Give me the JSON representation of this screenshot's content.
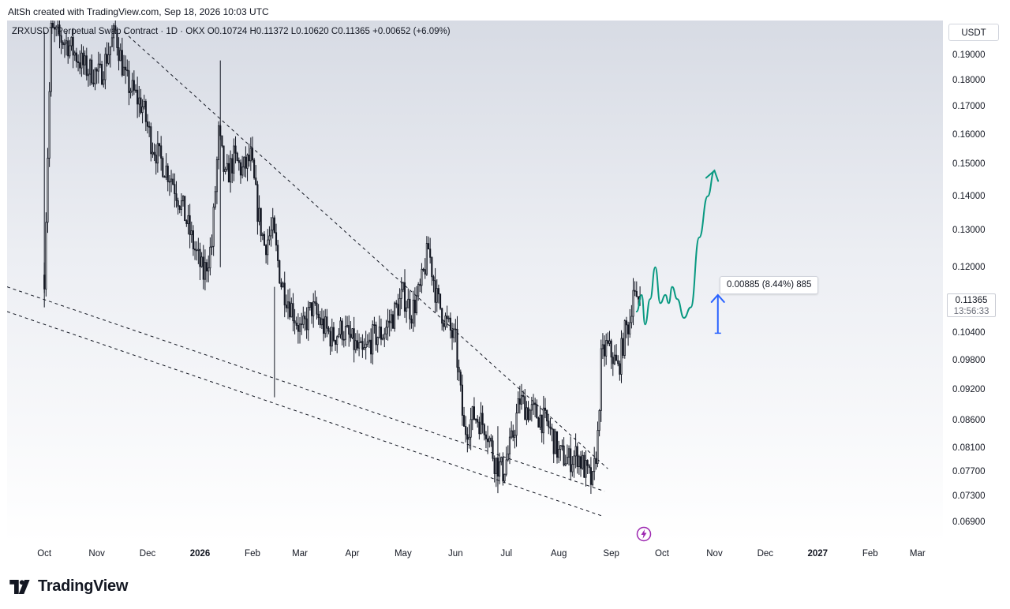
{
  "header": {
    "credit": "AltSh created with TradingView.com, Sep 18, 2026 10:03 UTC"
  },
  "legend": {
    "symbol": "ZRXUSDT Perpetual Swap Contract · 1D · OKX",
    "open": "O0.10724",
    "high": "H0.11372",
    "low": "L0.10620",
    "close": "C0.11365",
    "change": "+0.00652 (+6.09%)"
  },
  "currency_label": "USDT",
  "last_price": {
    "value": "0.11365",
    "countdown": "13:56:33"
  },
  "measure_label": "0.00885 (8.44%) 885",
  "logo_text": "TradingView",
  "colors": {
    "up": "#089981",
    "down": "#131722",
    "projection": "#089981",
    "arrow": "#2962ff",
    "flash": "#9c27b0"
  },
  "icons": [
    "tradingview-logo-icon",
    "flash-icon"
  ],
  "chart_data": {
    "type": "line",
    "title": "ZRXUSDT Perpetual Swap Contract · 1D · OKX",
    "xlabel": "",
    "ylabel": "",
    "y_scale": "log",
    "ylim": [
      0.066,
      0.205
    ],
    "y_ticks": [
      "0.19000",
      "0.18000",
      "0.17000",
      "0.16000",
      "0.15000",
      "0.14000",
      "0.13000",
      "0.12000",
      "0.10400",
      "0.09800",
      "0.09200",
      "0.08600",
      "0.08100",
      "0.07700",
      "0.07300",
      "0.06900"
    ],
    "x_ticks": [
      {
        "label": "Oct",
        "bold": false
      },
      {
        "label": "Nov",
        "bold": false
      },
      {
        "label": "Dec",
        "bold": false
      },
      {
        "label": "2026",
        "bold": true
      },
      {
        "label": "Feb",
        "bold": false
      },
      {
        "label": "Mar",
        "bold": false
      },
      {
        "label": "Apr",
        "bold": false
      },
      {
        "label": "May",
        "bold": false
      },
      {
        "label": "Jun",
        "bold": false
      },
      {
        "label": "Jul",
        "bold": false
      },
      {
        "label": "Aug",
        "bold": false
      },
      {
        "label": "Sep",
        "bold": false
      },
      {
        "label": "Oct",
        "bold": false
      },
      {
        "label": "Nov",
        "bold": false
      },
      {
        "label": "Dec",
        "bold": false
      },
      {
        "label": "2027",
        "bold": true
      },
      {
        "label": "Feb",
        "bold": false
      },
      {
        "label": "Mar",
        "bold": false
      }
    ],
    "x_range": [
      "2025-09-09",
      "2027-03-16"
    ],
    "series": [
      {
        "type": "price",
        "points": [
          [
            "2025-10-01",
            0.118
          ],
          [
            "2025-10-05",
            0.2
          ],
          [
            "2025-10-15",
            0.195
          ],
          [
            "2025-10-25",
            0.185
          ],
          [
            "2025-11-03",
            0.182
          ],
          [
            "2025-11-12",
            0.2
          ],
          [
            "2025-11-18",
            0.18
          ],
          [
            "2025-11-28",
            0.17
          ],
          [
            "2025-12-03",
            0.158
          ],
          [
            "2025-12-08",
            0.152
          ],
          [
            "2025-12-15",
            0.146
          ],
          [
            "2025-12-22",
            0.136
          ],
          [
            "2025-12-28",
            0.126
          ],
          [
            "2026-01-03",
            0.118
          ],
          [
            "2026-01-08",
            0.126
          ],
          [
            "2026-01-12",
            0.16
          ],
          [
            "2026-01-16",
            0.145
          ],
          [
            "2026-01-21",
            0.152
          ],
          [
            "2026-01-26",
            0.148
          ],
          [
            "2026-01-31",
            0.152
          ],
          [
            "2026-02-04",
            0.136
          ],
          [
            "2026-02-08",
            0.126
          ],
          [
            "2026-02-13",
            0.13
          ],
          [
            "2026-02-18",
            0.116
          ],
          [
            "2026-02-24",
            0.11
          ],
          [
            "2026-03-02",
            0.104
          ],
          [
            "2026-03-08",
            0.11
          ],
          [
            "2026-03-14",
            0.106
          ],
          [
            "2026-03-20",
            0.103
          ],
          [
            "2026-03-26",
            0.105
          ],
          [
            "2026-04-01",
            0.102
          ],
          [
            "2026-04-07",
            0.099
          ],
          [
            "2026-04-13",
            0.103
          ],
          [
            "2026-04-19",
            0.104
          ],
          [
            "2026-04-25",
            0.108
          ],
          [
            "2026-05-01",
            0.113
          ],
          [
            "2026-05-06",
            0.109
          ],
          [
            "2026-05-11",
            0.114
          ],
          [
            "2026-05-16",
            0.125
          ],
          [
            "2026-05-21",
            0.112
          ],
          [
            "2026-05-27",
            0.106
          ],
          [
            "2026-06-01",
            0.102
          ],
          [
            "2026-06-06",
            0.084
          ],
          [
            "2026-06-12",
            0.087
          ],
          [
            "2026-06-19",
            0.085
          ],
          [
            "2026-06-24",
            0.079
          ],
          [
            "2026-06-29",
            0.077
          ],
          [
            "2026-07-04",
            0.082
          ],
          [
            "2026-07-09",
            0.09
          ],
          [
            "2026-07-14",
            0.088
          ],
          [
            "2026-07-20",
            0.087
          ],
          [
            "2026-07-26",
            0.085
          ],
          [
            "2026-08-01",
            0.08
          ],
          [
            "2026-08-07",
            0.079
          ],
          [
            "2026-08-12",
            0.08
          ],
          [
            "2026-08-17",
            0.077
          ],
          [
            "2026-08-21",
            0.075
          ],
          [
            "2026-08-24",
            0.083
          ],
          [
            "2026-08-26",
            0.098
          ],
          [
            "2026-08-29",
            0.101
          ],
          [
            "2026-09-02",
            0.099
          ],
          [
            "2026-09-05",
            0.096
          ],
          [
            "2026-09-09",
            0.104
          ],
          [
            "2026-09-12",
            0.107
          ],
          [
            "2026-09-14",
            0.115
          ],
          [
            "2026-09-16",
            0.11
          ],
          [
            "2026-09-18",
            0.1137
          ]
        ]
      },
      {
        "type": "projection",
        "points": [
          [
            "2026-09-16",
            0.109
          ],
          [
            "2026-09-19",
            0.113
          ],
          [
            "2026-09-21",
            0.106
          ],
          [
            "2026-09-24",
            0.112
          ],
          [
            "2026-09-27",
            0.12
          ],
          [
            "2026-09-30",
            0.111
          ],
          [
            "2026-10-03",
            0.113
          ],
          [
            "2026-10-05",
            0.111
          ],
          [
            "2026-10-07",
            0.115
          ],
          [
            "2026-10-10",
            0.112
          ],
          [
            "2026-10-14",
            0.1075
          ],
          [
            "2026-10-18",
            0.11
          ],
          [
            "2026-10-23",
            0.128
          ],
          [
            "2026-10-28",
            0.14
          ],
          [
            "2026-11-01",
            0.148
          ]
        ]
      }
    ],
    "trendlines": [
      {
        "style": "dashed",
        "points": [
          [
            "2025-11-17",
            0.2
          ],
          [
            "2026-08-30",
            0.0775
          ]
        ]
      },
      {
        "style": "dashed",
        "points": [
          [
            "2025-09-09",
            0.115
          ],
          [
            "2026-08-28",
            0.0738
          ]
        ]
      },
      {
        "style": "dashed",
        "points": [
          [
            "2025-09-09",
            0.109
          ],
          [
            "2026-08-26",
            0.07
          ]
        ]
      }
    ],
    "measure": {
      "date": "2026-11-03",
      "from": 0.104,
      "to": 0.113
    }
  }
}
